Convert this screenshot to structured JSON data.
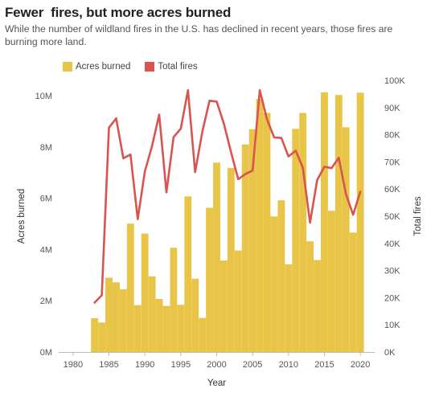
{
  "chart_data": {
    "type": "bar+line",
    "title": "Fewer  fires, but more acres burned",
    "subtitle": "While the number of wildland fires in the U.S. has declined in recent years, those fires are burning more land.",
    "xlabel": "Year",
    "ylabel_left": "Acres burned",
    "ylabel_right": "Total fires",
    "xlim": [
      1978,
      2022
    ],
    "ylim_left": [
      0,
      10600000
    ],
    "ylim_right": [
      0,
      100000
    ],
    "x_ticks": [
      1980,
      1985,
      1990,
      1995,
      2000,
      2005,
      2010,
      2015,
      2020
    ],
    "y_left_ticks": [
      {
        "v": 0,
        "label": "0M"
      },
      {
        "v": 2000000,
        "label": "2M"
      },
      {
        "v": 4000000,
        "label": "4M"
      },
      {
        "v": 6000000,
        "label": "6M"
      },
      {
        "v": 8000000,
        "label": "8M"
      },
      {
        "v": 10000000,
        "label": "10M"
      }
    ],
    "y_right_ticks": [
      {
        "v": 0,
        "label": "0K"
      },
      {
        "v": 10000,
        "label": "10K"
      },
      {
        "v": 20000,
        "label": "20K"
      },
      {
        "v": 30000,
        "label": "30K"
      },
      {
        "v": 40000,
        "label": "40K"
      },
      {
        "v": 50000,
        "label": "50K"
      },
      {
        "v": 60000,
        "label": "60K"
      },
      {
        "v": 70000,
        "label": "70K"
      },
      {
        "v": 80000,
        "label": "80K"
      },
      {
        "v": 90000,
        "label": "90K"
      },
      {
        "v": 100000,
        "label": "100K"
      }
    ],
    "grid": false,
    "legend": "top-left",
    "years": [
      1983,
      1984,
      1985,
      1986,
      1987,
      1988,
      1989,
      1990,
      1991,
      1992,
      1993,
      1994,
      1995,
      1996,
      1997,
      1998,
      1999,
      2000,
      2001,
      2002,
      2003,
      2004,
      2005,
      2006,
      2007,
      2008,
      2009,
      2010,
      2011,
      2012,
      2013,
      2014,
      2015,
      2016,
      2017,
      2018,
      2019,
      2020
    ],
    "series": [
      {
        "name": "Acres burned",
        "kind": "bar",
        "color": "#E8C547",
        "values": [
          1320000,
          1150000,
          2900000,
          2720000,
          2450000,
          5010000,
          1830000,
          4620000,
          2950000,
          2070000,
          1800000,
          4070000,
          1840000,
          6070000,
          2860000,
          1330000,
          5630000,
          7390000,
          3570000,
          7180000,
          3960000,
          8100000,
          8690000,
          9870000,
          9330000,
          5290000,
          5920000,
          3420000,
          8710000,
          9330000,
          4320000,
          3590000,
          10130000,
          5510000,
          10030000,
          8770000,
          4660000,
          10120000
        ]
      },
      {
        "name": "Total fires",
        "kind": "line",
        "color": "#D9534F",
        "values": [
          18200,
          20900,
          82600,
          86000,
          71300,
          72700,
          48900,
          66500,
          75800,
          87400,
          58800,
          79100,
          82200,
          96400,
          66200,
          81000,
          92500,
          92200,
          84100,
          73500,
          63600,
          65500,
          66800,
          96400,
          85700,
          79000,
          78800,
          72000,
          74100,
          67800,
          47600,
          63300,
          68200,
          67700,
          71500,
          58100,
          50500,
          59000
        ]
      }
    ]
  }
}
